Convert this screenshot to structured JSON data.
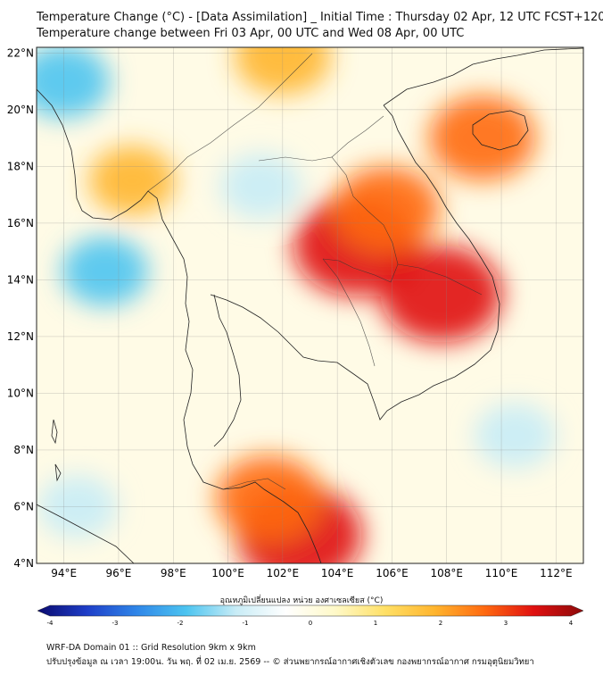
{
  "title": {
    "line1": "Temperature Change (°C) - [Data Assimilation] _ Initial Time : Thursday 02 Apr, 12 UTC FCST+120",
    "line2": "Temperature change between Fri 03 Apr, 00 UTC and Wed 08 Apr, 00 UTC"
  },
  "map": {
    "lat_labels": [
      "22°N",
      "20°N",
      "18°N",
      "16°N",
      "14°N",
      "12°N",
      "10°N",
      "8°N",
      "6°N",
      "4°N"
    ],
    "lat_values": [
      22,
      20,
      18,
      16,
      14,
      12,
      10,
      8,
      6,
      4
    ],
    "lon_labels": [
      "94°E",
      "96°E",
      "98°E",
      "100°E",
      "102°E",
      "104°E",
      "106°E",
      "108°E",
      "110°E",
      "112°E"
    ],
    "lon_values": [
      94,
      96,
      98,
      100,
      102,
      104,
      106,
      108,
      110,
      112
    ],
    "lat_range": [
      4,
      22.2
    ],
    "lon_range": [
      93,
      113
    ]
  },
  "anomalies": [
    {
      "name": "hot-east-thailand-cambodia",
      "lon": 104.7,
      "lat": 15.2,
      "value": 3.2
    },
    {
      "name": "hot-south-laos",
      "lon": 105.8,
      "lat": 16.5,
      "value": 2.4
    },
    {
      "name": "hot-cambodia-east",
      "lon": 107.8,
      "lat": 13.5,
      "value": 3.0
    },
    {
      "name": "hot-malaysia",
      "lon": 102.6,
      "lat": 5.0,
      "value": 3.2
    },
    {
      "name": "hot-kra-isthmus",
      "lon": 101.5,
      "lat": 6.3,
      "value": 2.4
    },
    {
      "name": "hot-hainan",
      "lon": 109.3,
      "lat": 19.0,
      "value": 2.4
    },
    {
      "name": "hot-north-border",
      "lon": 102.0,
      "lat": 21.9,
      "value": 2.0
    },
    {
      "name": "warm-central-myanmar",
      "lon": 96.5,
      "lat": 17.5,
      "value": 1.6
    },
    {
      "name": "cold-north-thailand",
      "lon": 101.2,
      "lat": 17.3,
      "value": -1.4
    },
    {
      "name": "cold-andaman",
      "lon": 95.5,
      "lat": 14.3,
      "value": -1.6
    },
    {
      "name": "cold-bay-nw",
      "lon": 94.0,
      "lat": 21.0,
      "value": -1.8
    },
    {
      "name": "cold-south-china-sea",
      "lon": 110.5,
      "lat": 8.5,
      "value": -1.4
    },
    {
      "name": "cold-sw-sea",
      "lon": 94.5,
      "lat": 6.0,
      "value": -1.3
    }
  ],
  "colorbar": {
    "title": "อุณหภูมิเปลี่ยนแปลง หน่วย องศาเซลเซียส (°C)",
    "ticks": [
      -4,
      -3,
      -2,
      -1,
      0,
      1,
      2,
      3,
      4
    ],
    "tick_labels": [
      "-4",
      "-3",
      "-2",
      "-1",
      "0",
      "1",
      "2",
      "3",
      "4"
    ],
    "stops": [
      "#0a0a6e",
      "#1e3ec8",
      "#2f86e8",
      "#4cc4f0",
      "#c8ecf6",
      "#ffffff",
      "#fff9c8",
      "#ffe066",
      "#ffb52e",
      "#ff6a10",
      "#e01010",
      "#8c0a0a"
    ]
  },
  "footer": {
    "line1": "WRF-DA Domain 01 :: Grid Resolution 9km x 9km",
    "line2": "ปรับปรุงข้อมูล ณ เวลา 19:00น. วัน พฤ. ที่ 02 เม.ย. 2569 -- © ส่วนพยากรณ์อากาศเชิงตัวเลข กองพยากรณ์อากาศ กรมอุตุนิยมวิทยา"
  }
}
